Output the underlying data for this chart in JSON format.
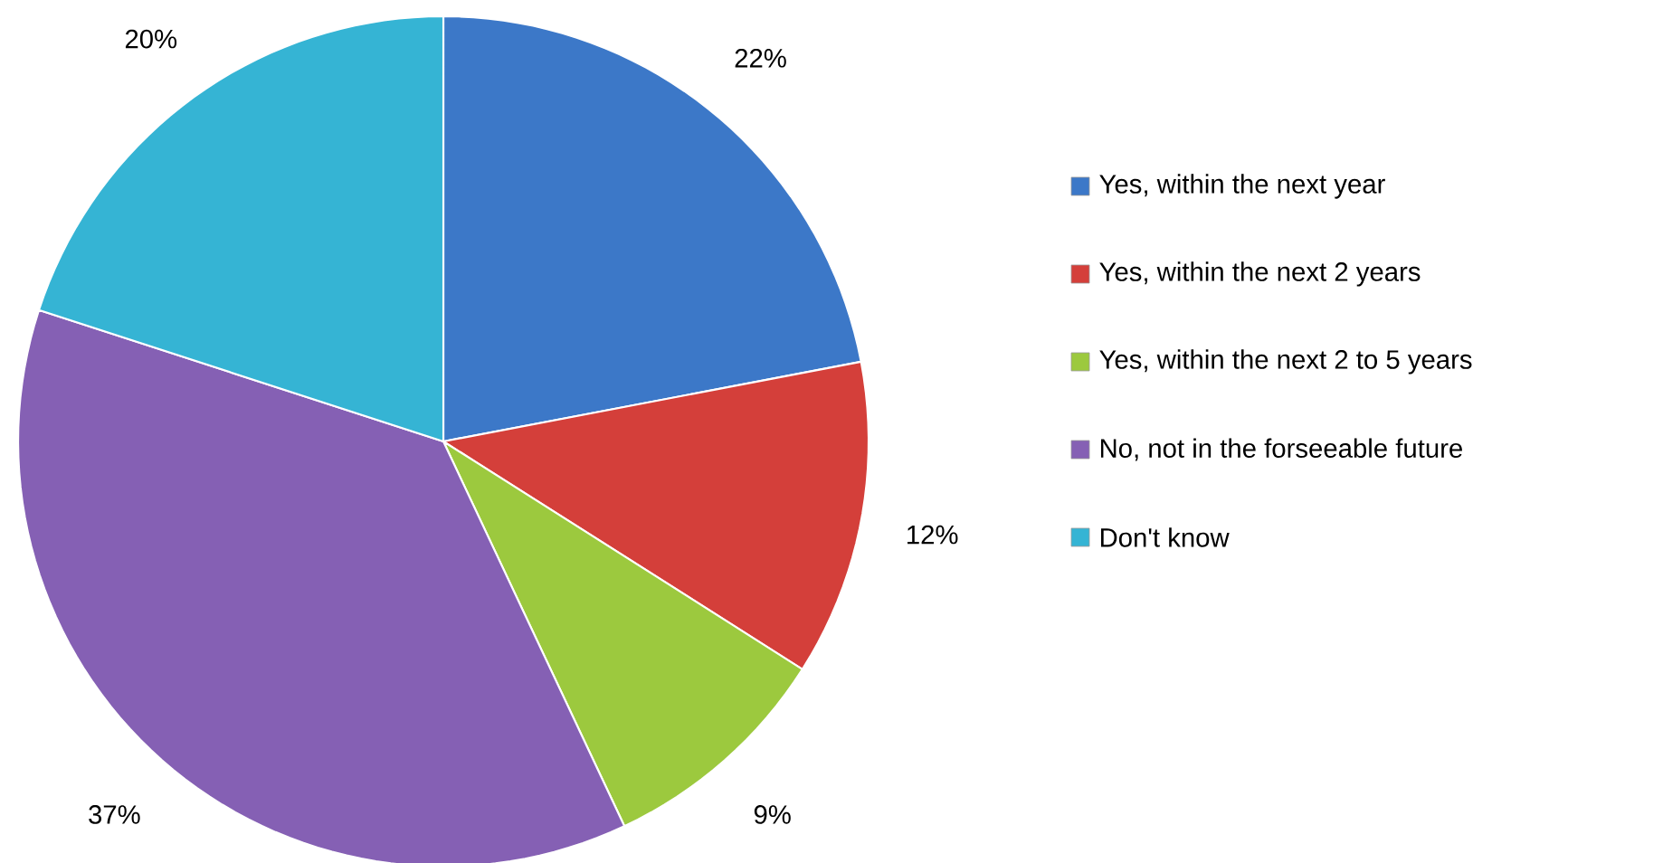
{
  "chart_data": {
    "type": "pie",
    "categories": [
      "Yes, within the next year",
      "Yes, within the next 2 years",
      "Yes, within the next 2 to 5 years",
      "No, not in the forseeable future",
      "Don't know"
    ],
    "values": [
      22,
      12,
      9,
      37,
      20
    ],
    "value_labels": [
      "22%",
      "12%",
      "9%",
      "37%",
      "20%"
    ],
    "colors": [
      "#3c78c8",
      "#d43f3a",
      "#9cc93e",
      "#8560b4",
      "#35b4d4"
    ],
    "legend": "right"
  }
}
